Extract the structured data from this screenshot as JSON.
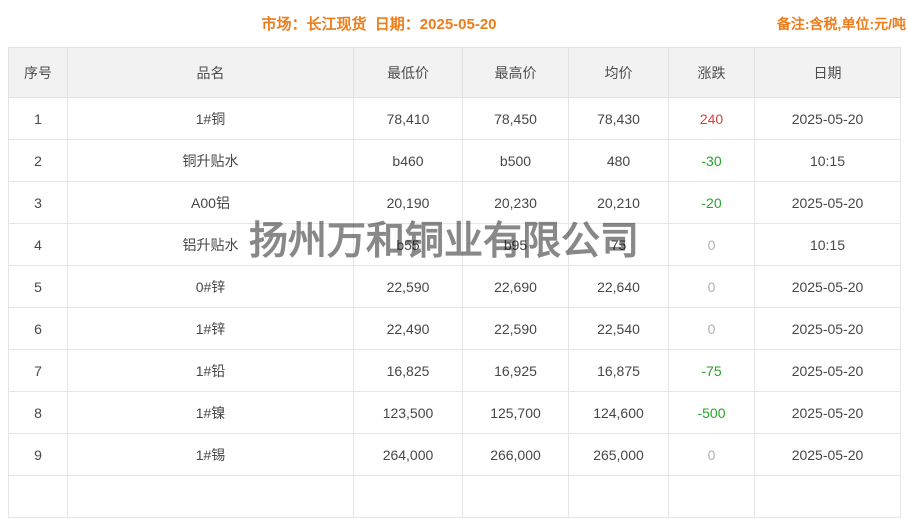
{
  "page": {
    "title": "市场：长江现货  日期：2025-05-20",
    "note": "备注:含税,单位:元/吨",
    "watermark": "扬州万和铜业有限公司",
    "colors": {
      "accent": "#ed7d1b",
      "up": "#e13c3c",
      "down": "#28a428",
      "flat": "#b0b0b0",
      "text": "#474747"
    }
  },
  "table": {
    "headers": [
      "序号",
      "品名",
      "最低价",
      "最高价",
      "均价",
      "涨跌",
      "日期"
    ],
    "rows": [
      {
        "no": "1",
        "name": "1#铜",
        "low": "78,410",
        "high": "78,450",
        "avg": "78,430",
        "change": "240",
        "trend": "up",
        "date": "2025-05-20"
      },
      {
        "no": "2",
        "name": "铜升贴水",
        "low": "b460",
        "high": "b500",
        "avg": "480",
        "change": "-30",
        "trend": "down",
        "date": "10:15"
      },
      {
        "no": "3",
        "name": "A00铝",
        "low": "20,190",
        "high": "20,230",
        "avg": "20,210",
        "change": "-20",
        "trend": "down",
        "date": "2025-05-20"
      },
      {
        "no": "4",
        "name": "铝升贴水",
        "low": "b55",
        "high": "b95",
        "avg": "75",
        "change": "0",
        "trend": "flat",
        "date": "10:15"
      },
      {
        "no": "5",
        "name": "0#锌",
        "low": "22,590",
        "high": "22,690",
        "avg": "22,640",
        "change": "0",
        "trend": "flat",
        "date": "2025-05-20"
      },
      {
        "no": "6",
        "name": "1#锌",
        "low": "22,490",
        "high": "22,590",
        "avg": "22,540",
        "change": "0",
        "trend": "flat",
        "date": "2025-05-20"
      },
      {
        "no": "7",
        "name": "1#铅",
        "low": "16,825",
        "high": "16,925",
        "avg": "16,875",
        "change": "-75",
        "trend": "down",
        "date": "2025-05-20"
      },
      {
        "no": "8",
        "name": "1#镍",
        "low": "123,500",
        "high": "125,700",
        "avg": "124,600",
        "change": "-500",
        "trend": "down",
        "date": "2025-05-20"
      },
      {
        "no": "9",
        "name": "1#锡",
        "low": "264,000",
        "high": "266,000",
        "avg": "265,000",
        "change": "0",
        "trend": "flat",
        "date": "2025-05-20"
      }
    ]
  }
}
